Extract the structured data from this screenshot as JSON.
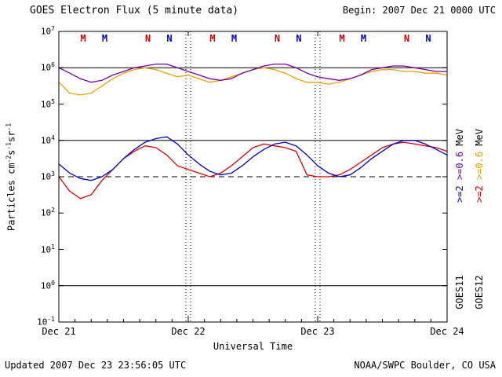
{
  "header": {
    "title": "GOES Electron Flux (5 minute data)",
    "begin": "Begin: 2007 Dec 21 0000 UTC"
  },
  "footer": {
    "updated": "Updated 2007 Dec 23 23:56:05 UTC",
    "source": "NOAA/SWPC Boulder, CO USA"
  },
  "axes": {
    "x_label": "Universal Time",
    "y_label_parts": [
      {
        "text": "Particles cm"
      },
      {
        "sup": "-2"
      },
      {
        "text": "s"
      },
      {
        "sup": "-1"
      },
      {
        "text": "sr"
      },
      {
        "sup": "-1"
      }
    ],
    "y_tick_exponents": [
      7,
      6,
      5,
      4,
      3,
      2,
      1,
      0,
      -1
    ],
    "x_ticks": [
      {
        "hour": 0,
        "label": "Dec 21"
      },
      {
        "hour": 24,
        "label": "Dec 22"
      },
      {
        "hour": 48,
        "label": "Dec 23"
      },
      {
        "hour": 72,
        "label": "Dec 24"
      }
    ]
  },
  "markers": {
    "colors": {
      "GOES11": "#0000cc",
      "GOES12": "#cc0000"
    },
    "items": [
      {
        "h": 4.5,
        "label": "M",
        "sat": "GOES12"
      },
      {
        "h": 8.5,
        "label": "M",
        "sat": "GOES11"
      },
      {
        "h": 16.5,
        "label": "N",
        "sat": "GOES12"
      },
      {
        "h": 20.5,
        "label": "N",
        "sat": "GOES11"
      },
      {
        "h": 28.5,
        "label": "M",
        "sat": "GOES12"
      },
      {
        "h": 32.5,
        "label": "M",
        "sat": "GOES11"
      },
      {
        "h": 40.5,
        "label": "N",
        "sat": "GOES12"
      },
      {
        "h": 44.5,
        "label": "N",
        "sat": "GOES11"
      },
      {
        "h": 52.5,
        "label": "M",
        "sat": "GOES12"
      },
      {
        "h": 56.5,
        "label": "M",
        "sat": "GOES11"
      },
      {
        "h": 64.5,
        "label": "N",
        "sat": "GOES12"
      },
      {
        "h": 68.5,
        "label": "N",
        "sat": "GOES11"
      }
    ]
  },
  "legend": {
    "goes11": {
      "name": "GOES11",
      "e2": {
        "label": ">=2",
        "color": "#0000cc"
      },
      "e06": {
        "label": ">=0.6",
        "color": "#7700aa"
      },
      "unit": "MeV"
    },
    "goes12": {
      "name": "GOES12",
      "e2": {
        "label": ">=2",
        "color": "#dd0000"
      },
      "e06": {
        "label": ">=0.6",
        "color": "#f0a000"
      },
      "unit": "MeV"
    }
  },
  "chart_data": {
    "type": "line",
    "title": "GOES Electron Flux (5 minute data)",
    "xlabel": "Universal Time",
    "ylabel": "Particles cm^-2 s^-1 sr^-1",
    "ylog": true,
    "ylim": [
      0.1,
      10000000
    ],
    "x_range": [
      0,
      72
    ],
    "x_unit": "hours since 2007 Dec 21 0000 UTC",
    "grid_hlines": [
      {
        "value": 1000000,
        "style": "solid"
      },
      {
        "value": 10000,
        "style": "solid"
      },
      {
        "value": 1,
        "style": "solid"
      },
      {
        "value": 1000,
        "style": "dashed"
      }
    ],
    "vlines_hours": [
      24,
      48
    ],
    "vline_style": "dotted",
    "x_hours": [
      0,
      2,
      4,
      6,
      8,
      10,
      12,
      14,
      16,
      18,
      20,
      22,
      24,
      26,
      28,
      30,
      32,
      34,
      36,
      38,
      40,
      42,
      44,
      46,
      48,
      50,
      52,
      54,
      56,
      58,
      60,
      62,
      64,
      66,
      68,
      70,
      72
    ],
    "series": [
      {
        "name": "GOES12 >=0.6 MeV",
        "satellite": "GOES12",
        "energy": ">=0.6 MeV",
        "color": "#f0a000",
        "values": [
          400000,
          200000,
          178000,
          200000,
          316000,
          500000,
          708000,
          891000,
          1000000,
          891000,
          708000,
          562000,
          631000,
          500000,
          400000,
          447000,
          562000,
          708000,
          891000,
          1000000,
          891000,
          708000,
          500000,
          400000,
          400000,
          355000,
          400000,
          500000,
          631000,
          794000,
          891000,
          891000,
          794000,
          794000,
          708000,
          708000,
          631000
        ]
      },
      {
        "name": "GOES11 >=0.6 MeV",
        "satellite": "GOES11",
        "energy": ">=0.6 MeV",
        "color": "#7700aa",
        "values": [
          1000000,
          710000,
          500000,
          400000,
          450000,
          630000,
          790000,
          1000000,
          1120000,
          1260000,
          1260000,
          1000000,
          790000,
          630000,
          500000,
          450000,
          500000,
          710000,
          890000,
          1120000,
          1260000,
          1260000,
          1000000,
          710000,
          560000,
          500000,
          450000,
          500000,
          630000,
          890000,
          1000000,
          1120000,
          1120000,
          1000000,
          890000,
          790000,
          790000
        ]
      },
      {
        "name": "GOES12 >=2 MeV",
        "satellite": "GOES12",
        "energy": ">=2 MeV",
        "color": "#dd0000",
        "values": [
          1000,
          400,
          250,
          320,
          790,
          1580,
          3160,
          5010,
          7080,
          6310,
          3980,
          2000,
          1580,
          1260,
          1000,
          1260,
          2000,
          3550,
          6310,
          7940,
          7080,
          6310,
          5010,
          1120,
          1000,
          1000,
          1120,
          1580,
          2510,
          3980,
          6310,
          7940,
          8910,
          7940,
          7080,
          6310,
          5010
        ]
      },
      {
        "name": "GOES11 >=2 MeV",
        "satellite": "GOES11",
        "energy": ">=2 MeV",
        "color": "#0000cc",
        "values": [
          2240,
          1260,
          890,
          790,
          1000,
          1580,
          3160,
          5620,
          8910,
          11200,
          12600,
          7940,
          3980,
          2240,
          1410,
          1120,
          1260,
          2000,
          3550,
          5620,
          7940,
          8910,
          7080,
          3980,
          2000,
          1260,
          1000,
          1120,
          1780,
          3160,
          5010,
          7940,
          10000,
          10000,
          7940,
          5620,
          3980
        ]
      }
    ]
  }
}
